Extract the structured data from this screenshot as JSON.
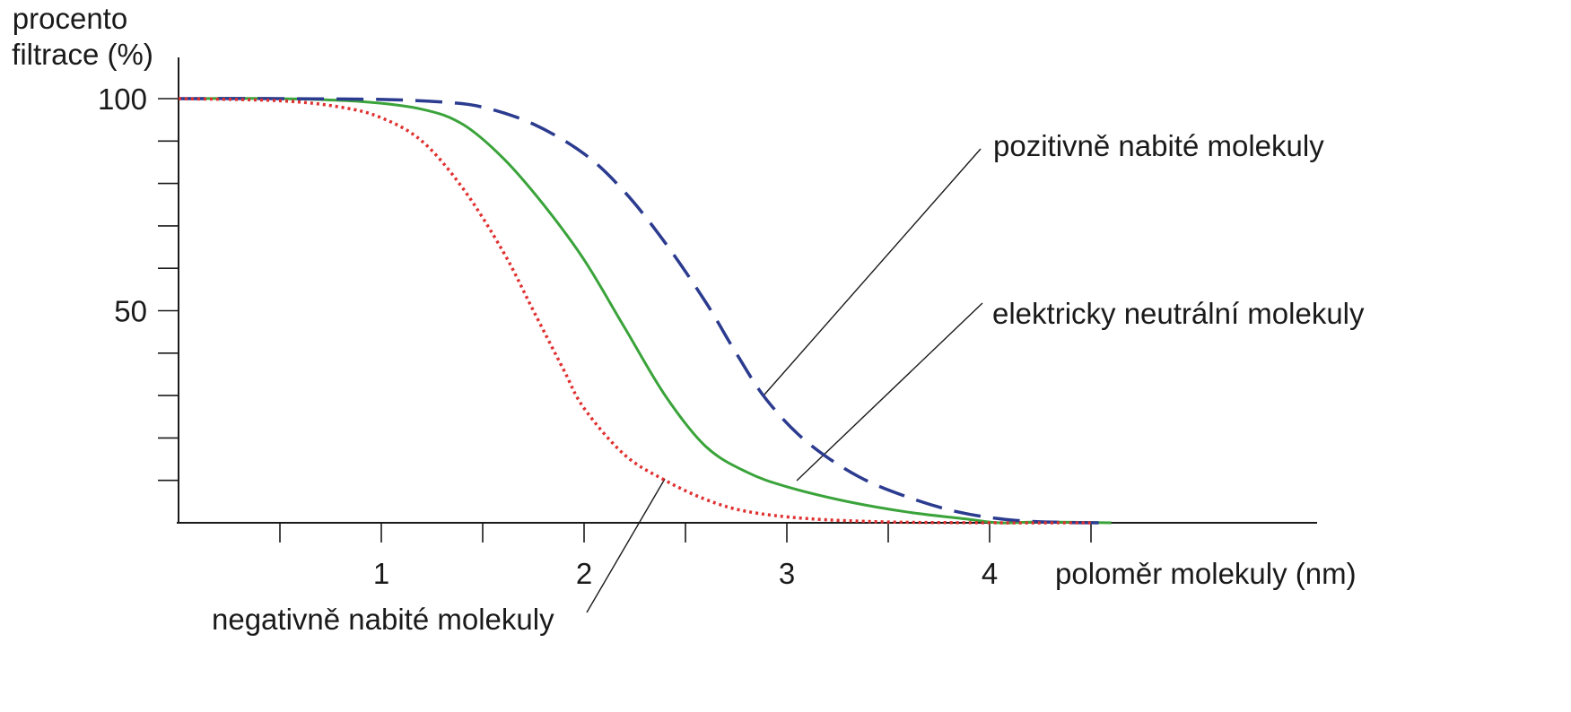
{
  "chart_data": {
    "type": "line",
    "ylabel_lines": [
      "procento",
      "filtrace (%)"
    ],
    "xlabel": "poloměr molekuly (nm)",
    "xlim": [
      0,
      5.6
    ],
    "ylim": [
      0,
      100
    ],
    "x_ticks": [
      0.5,
      1,
      1.5,
      2,
      2.5,
      3,
      3.5,
      4,
      4.5
    ],
    "x_tick_labels": [
      {
        "x": 1,
        "label": "1"
      },
      {
        "x": 2,
        "label": "2"
      },
      {
        "x": 3,
        "label": "3"
      },
      {
        "x": 4,
        "label": "4"
      }
    ],
    "y_ticks": [
      10,
      20,
      30,
      40,
      50,
      60,
      70,
      80,
      90,
      100
    ],
    "y_tick_labels": [
      {
        "y": 100,
        "label": "100"
      },
      {
        "y": 50,
        "label": "50"
      }
    ],
    "grid": false,
    "series": [
      {
        "name": "pozitivně nabité molekuly",
        "color": "#2b3b8f",
        "style": "dashed",
        "points": [
          [
            0,
            100
          ],
          [
            0.5,
            100
          ],
          [
            1,
            99.8
          ],
          [
            1.3,
            99.2
          ],
          [
            1.5,
            98
          ],
          [
            1.75,
            94
          ],
          [
            2,
            87
          ],
          [
            2.2,
            78
          ],
          [
            2.4,
            66
          ],
          [
            2.6,
            52
          ],
          [
            2.75,
            40
          ],
          [
            2.9,
            29
          ],
          [
            3.1,
            19
          ],
          [
            3.35,
            11
          ],
          [
            3.6,
            6
          ],
          [
            3.85,
            2.5
          ],
          [
            4.1,
            0.7
          ],
          [
            4.35,
            0.1
          ],
          [
            4.6,
            0
          ]
        ]
      },
      {
        "name": "elektricky neutrální molekuly",
        "color": "#3aa33a",
        "style": "solid",
        "points": [
          [
            0,
            100
          ],
          [
            0.5,
            100
          ],
          [
            0.9,
            99.3
          ],
          [
            1.2,
            97.5
          ],
          [
            1.4,
            94
          ],
          [
            1.6,
            86
          ],
          [
            1.8,
            75
          ],
          [
            2,
            62
          ],
          [
            2.2,
            46
          ],
          [
            2.4,
            30
          ],
          [
            2.6,
            18
          ],
          [
            2.8,
            12
          ],
          [
            3,
            8.5
          ],
          [
            3.3,
            5
          ],
          [
            3.6,
            2.5
          ],
          [
            3.9,
            0.8
          ],
          [
            4.05,
            0
          ],
          [
            4.25,
            0.2
          ],
          [
            4.6,
            0
          ]
        ]
      },
      {
        "name": "negativně nabité molekuly",
        "color": "#e03030",
        "style": "dotted",
        "points": [
          [
            0,
            100
          ],
          [
            0.5,
            99.5
          ],
          [
            0.8,
            98
          ],
          [
            1,
            95.5
          ],
          [
            1.2,
            90
          ],
          [
            1.4,
            79
          ],
          [
            1.6,
            64
          ],
          [
            1.75,
            50
          ],
          [
            1.9,
            36
          ],
          [
            2,
            27
          ],
          [
            2.2,
            16
          ],
          [
            2.4,
            10
          ],
          [
            2.6,
            5.5
          ],
          [
            2.8,
            2.7
          ],
          [
            3.1,
            1
          ],
          [
            3.5,
            0.2
          ],
          [
            4,
            0
          ],
          [
            4.5,
            0
          ]
        ]
      }
    ],
    "annotations": [
      {
        "text": "pozitivně nabité molekuly",
        "series": 0
      },
      {
        "text": "elektricky neutrální molekuly",
        "series": 1
      },
      {
        "text": "negativně nabité molekuly",
        "series": 2
      }
    ]
  }
}
